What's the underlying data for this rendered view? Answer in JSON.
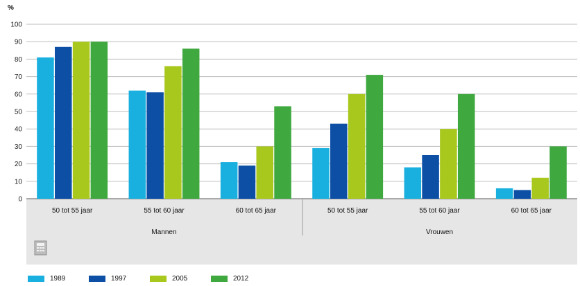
{
  "chart_data": {
    "type": "bar",
    "ylabel": "%",
    "ylim": [
      0,
      100
    ],
    "yticks": [
      0,
      10,
      20,
      30,
      40,
      50,
      60,
      70,
      80,
      90,
      100
    ],
    "grid": true,
    "legend_position": "bottom-left",
    "groups": [
      {
        "label": "Mannen",
        "categories": [
          "50 tot 55 jaar",
          "55 tot 60 jaar",
          "60 tot 65 jaar"
        ]
      },
      {
        "label": "Vrouwen",
        "categories": [
          "50 tot 55 jaar",
          "55 tot 60 jaar",
          "60 tot 65 jaar"
        ]
      }
    ],
    "categories": [
      "50 tot 55 jaar",
      "55 tot 60 jaar",
      "60 tot 65 jaar",
      "50 tot 55 jaar",
      "55 tot 60 jaar",
      "60 tot 65 jaar"
    ],
    "series": [
      {
        "name": "1989",
        "color": "#19b0e0",
        "values": [
          81,
          62,
          21,
          29,
          18,
          6
        ]
      },
      {
        "name": "1997",
        "color": "#0c4fa5",
        "values": [
          87,
          61,
          19,
          43,
          25,
          5
        ]
      },
      {
        "name": "2005",
        "color": "#a8c81e",
        "values": [
          90,
          76,
          30,
          60,
          40,
          12
        ]
      },
      {
        "name": "2012",
        "color": "#3fa83f",
        "values": [
          90,
          86,
          53,
          71,
          60,
          30
        ]
      }
    ]
  }
}
